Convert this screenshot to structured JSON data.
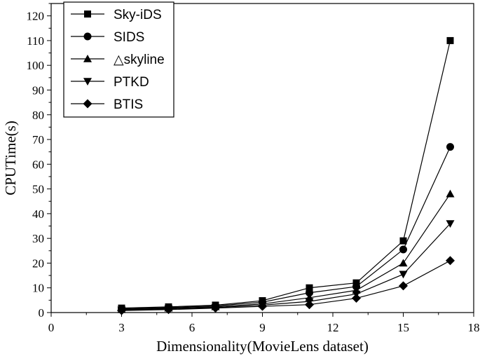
{
  "chart_data": {
    "type": "line",
    "title": "",
    "xlabel": "Dimensionality(MovieLens dataset)",
    "ylabel": "CPUTime(s)",
    "xlim": [
      0,
      18
    ],
    "ylim": [
      0,
      125
    ],
    "xticks": [
      0,
      3,
      6,
      9,
      12,
      15,
      18
    ],
    "yticks": [
      0,
      10,
      20,
      30,
      40,
      50,
      60,
      70,
      80,
      90,
      100,
      110,
      120
    ],
    "grid": false,
    "legend": "top-left",
    "x": [
      3,
      5,
      7,
      9,
      11,
      13,
      15,
      17
    ],
    "series": [
      {
        "name": "Sky-iDS",
        "marker": "square",
        "values": [
          1.8,
          2.3,
          3.0,
          4.8,
          10.0,
          12.0,
          29.0,
          110.0
        ]
      },
      {
        "name": "SIDS",
        "marker": "circle",
        "values": [
          1.5,
          2.0,
          2.7,
          4.2,
          8.0,
          10.5,
          25.5,
          67.0
        ]
      },
      {
        "name": "△skyline",
        "marker": "triangle-up",
        "values": [
          1.2,
          1.8,
          2.3,
          3.5,
          6.0,
          9.0,
          20.0,
          48.0
        ]
      },
      {
        "name": "PTKD",
        "marker": "triangle-down",
        "values": [
          1.0,
          1.5,
          2.0,
          3.0,
          4.5,
          7.5,
          15.5,
          36.0
        ]
      },
      {
        "name": "BTIS",
        "marker": "diamond",
        "values": [
          0.8,
          1.2,
          1.8,
          2.5,
          3.2,
          5.8,
          10.8,
          21.0
        ]
      }
    ]
  }
}
